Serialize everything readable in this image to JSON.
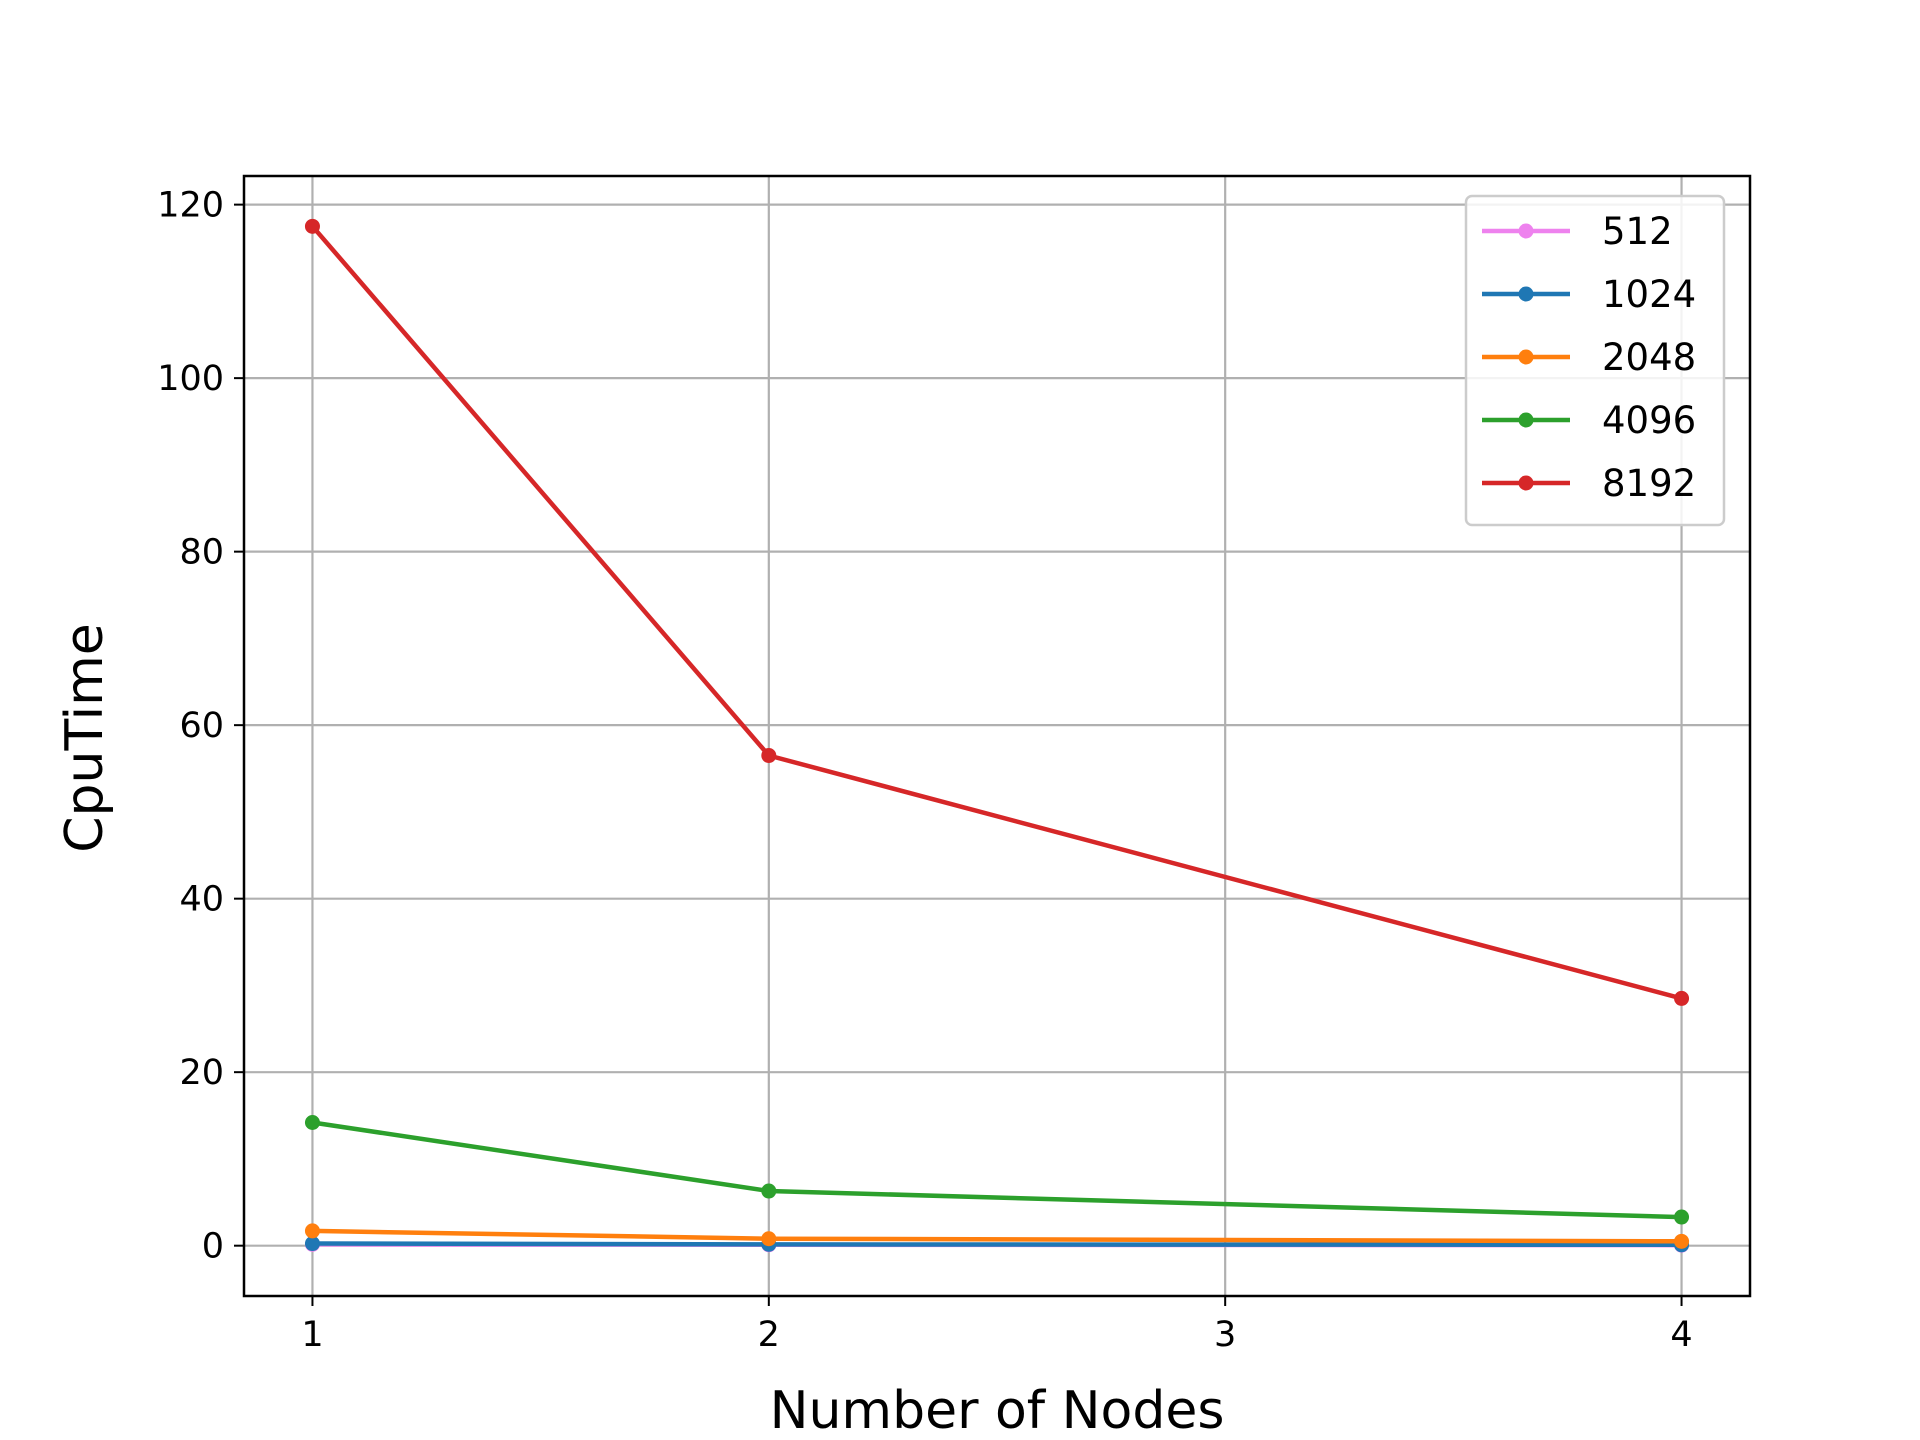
{
  "chart_data": {
    "type": "line",
    "title": "",
    "xlabel": "Number of Nodes",
    "ylabel": "CpuTime",
    "x": [
      1,
      2,
      3,
      4
    ],
    "x_ticks": [
      1,
      2,
      3,
      4
    ],
    "y_ticks": [
      0,
      20,
      40,
      60,
      80,
      100,
      120
    ],
    "xlim": [
      0.85,
      4.15
    ],
    "ylim": [
      -5.8,
      123.3
    ],
    "grid": true,
    "legend_position": "top-right",
    "series": [
      {
        "name": "512",
        "color": "#ee82ee",
        "points": [
          [
            1,
            0.15
          ],
          [
            2,
            0.1
          ],
          [
            4,
            0.05
          ]
        ]
      },
      {
        "name": "1024",
        "color": "#1f77b4",
        "points": [
          [
            1,
            0.25
          ],
          [
            2,
            0.15
          ],
          [
            4,
            0.1
          ]
        ]
      },
      {
        "name": "2048",
        "color": "#ff7f0e",
        "points": [
          [
            1,
            1.7
          ],
          [
            2,
            0.8
          ],
          [
            4,
            0.5
          ]
        ]
      },
      {
        "name": "4096",
        "color": "#2ca02c",
        "points": [
          [
            1,
            14.2
          ],
          [
            2,
            6.3
          ],
          [
            4,
            3.3
          ]
        ]
      },
      {
        "name": "8192",
        "color": "#d62728",
        "points": [
          [
            1,
            117.5
          ],
          [
            2,
            56.5
          ],
          [
            4,
            28.5
          ]
        ]
      }
    ]
  }
}
